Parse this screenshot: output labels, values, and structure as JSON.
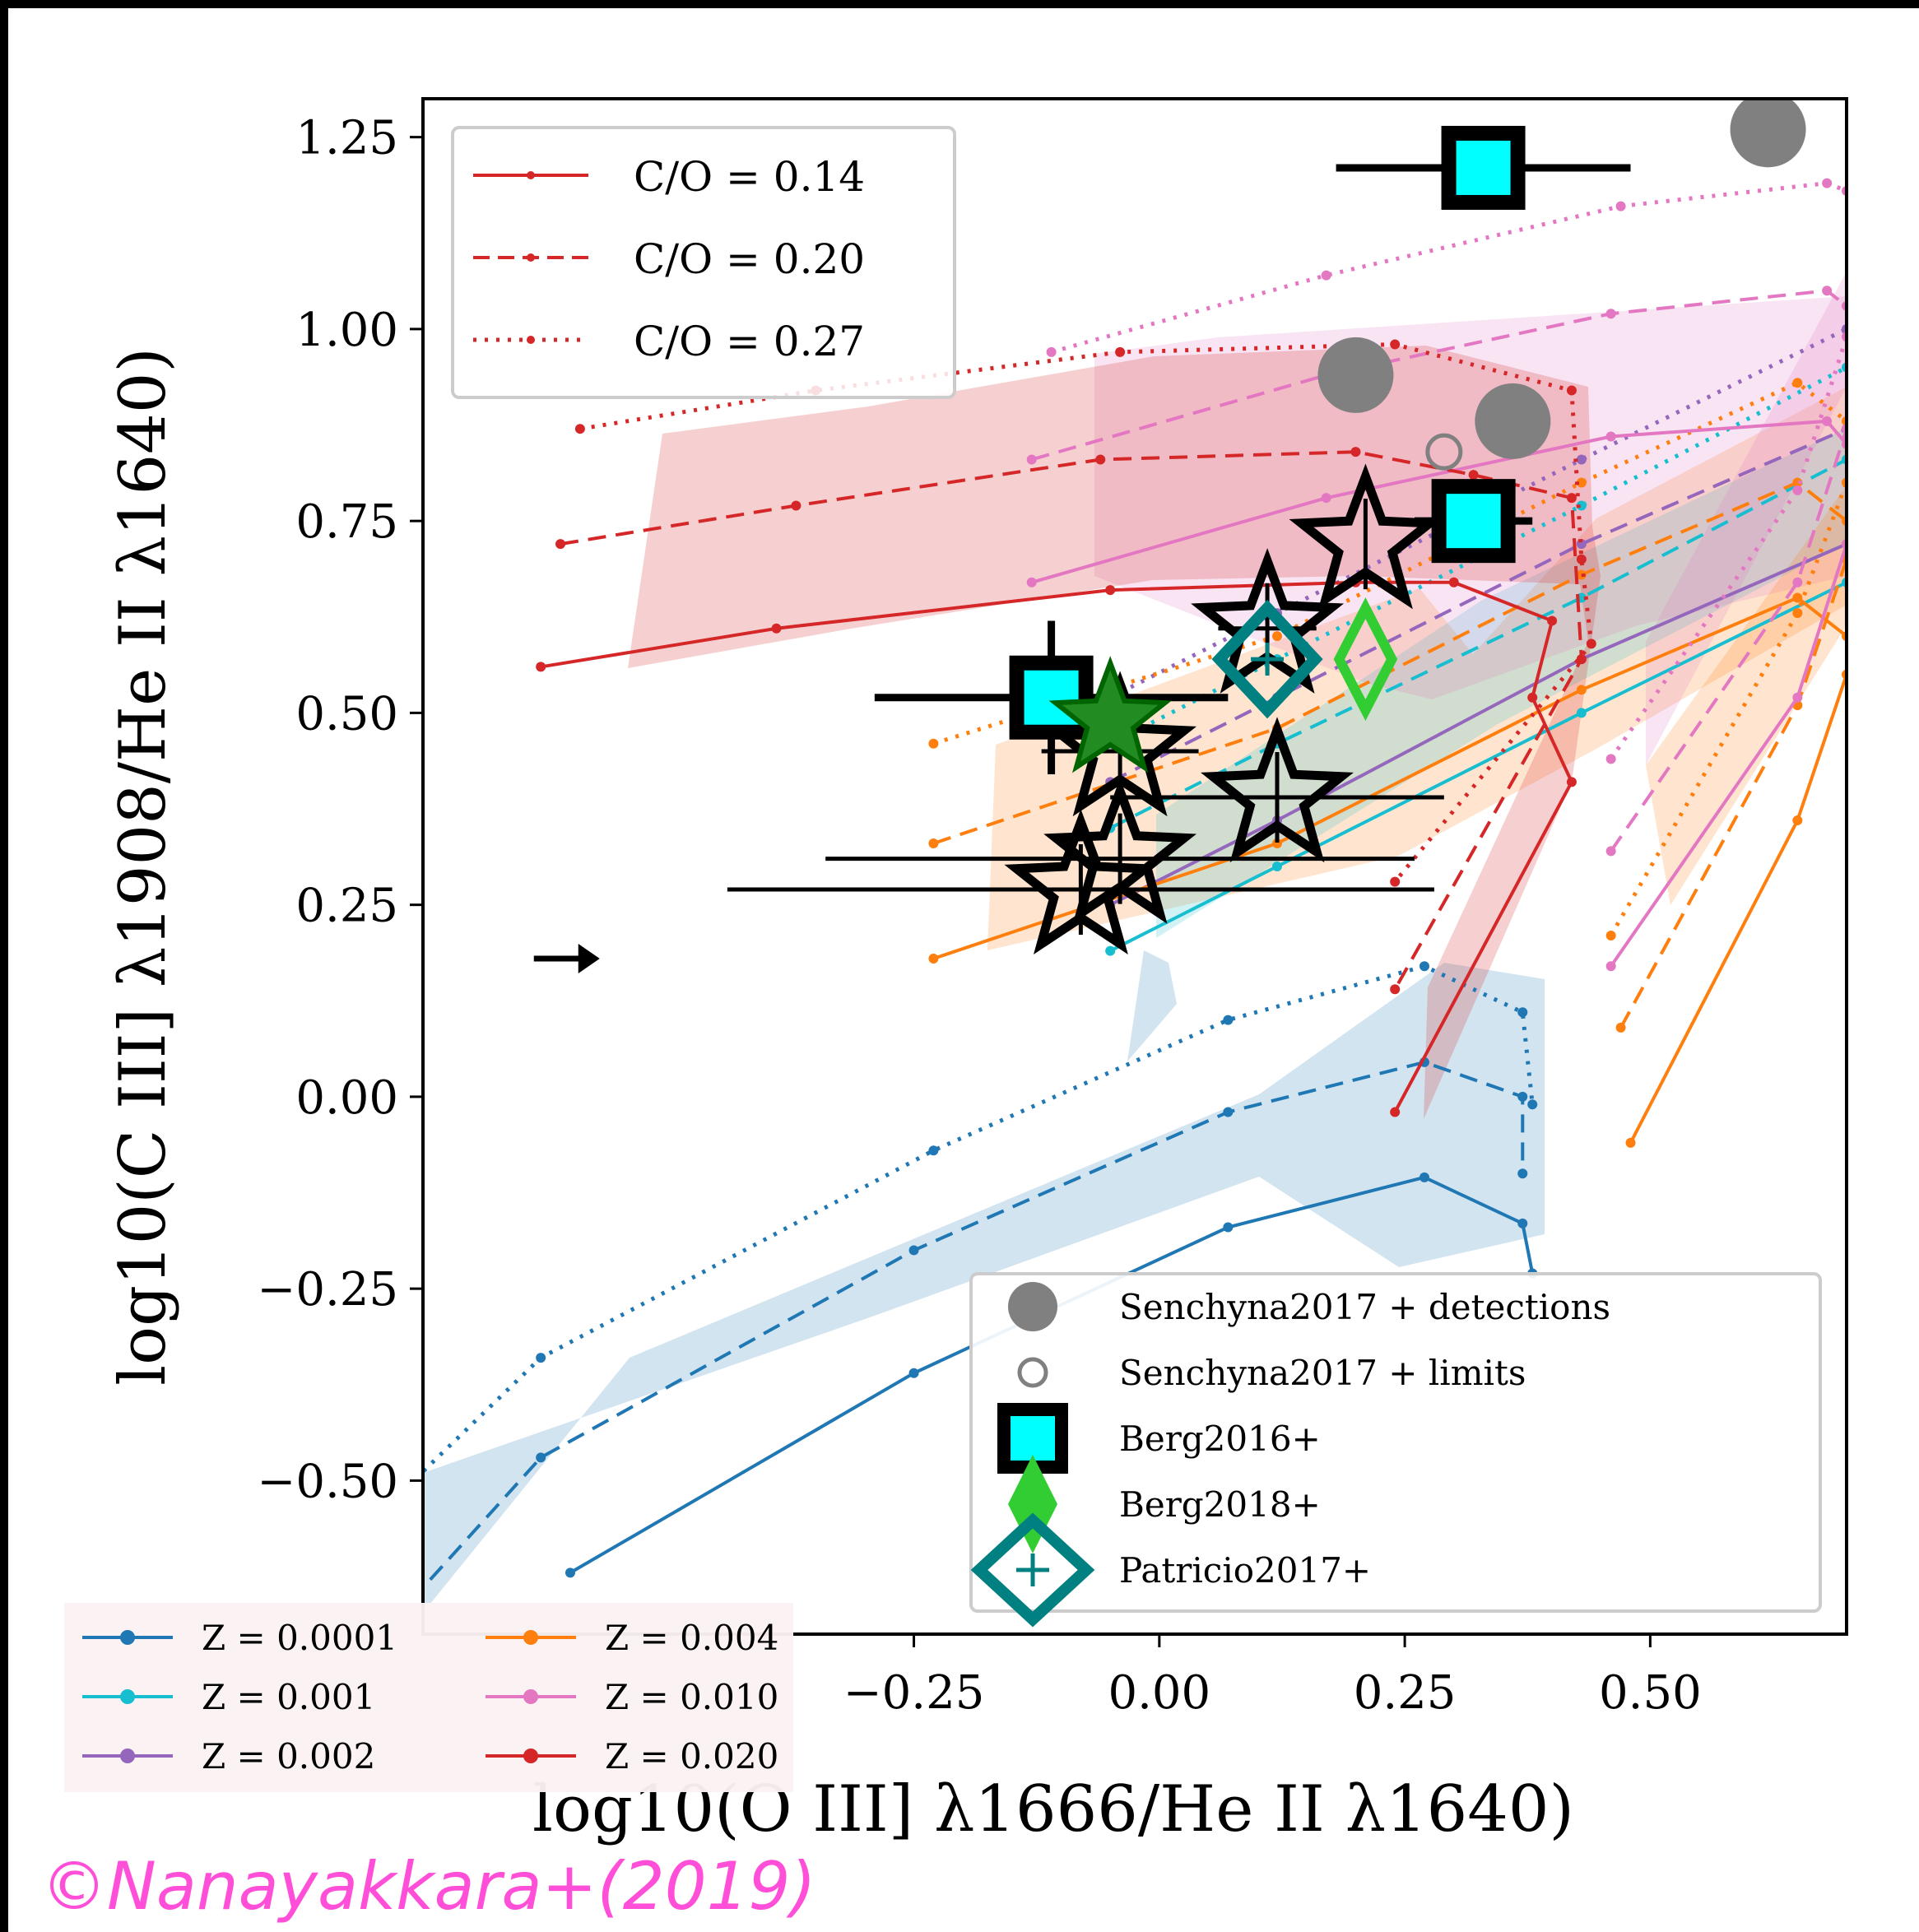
{
  "chart_data": {
    "type": "line",
    "xlabel": "log10(O III] λ1666/He II λ1640)",
    "ylabel": "log10(C III] λ1908/He II λ1640)",
    "xlim": [
      -0.75,
      0.7
    ],
    "ylim": [
      -0.7,
      1.3
    ],
    "xticks": [
      "−0.25",
      "0.00",
      "0.25",
      "0.50"
    ],
    "yticks": [
      "−0.50",
      "−0.25",
      "0.00",
      "0.25",
      "0.50",
      "0.75",
      "1.00",
      "1.25"
    ],
    "xtick_values": [
      -0.25,
      0,
      0.25,
      0.5
    ],
    "ytick_values": [
      -0.5,
      -0.25,
      0,
      0.25,
      0.5,
      0.75,
      1.0,
      1.25
    ],
    "legend_co": [
      {
        "label": "C/O = 0.14",
        "style": "solid"
      },
      {
        "label": "C/O = 0.20",
        "style": "dashed"
      },
      {
        "label": "C/O = 0.27",
        "style": "dotted"
      }
    ],
    "legend_z": [
      {
        "label": "Z = 0.0001",
        "color": "#1f77b4"
      },
      {
        "label": "Z = 0.001",
        "color": "#17becf"
      },
      {
        "label": "Z = 0.002",
        "color": "#9467bd"
      },
      {
        "label": "Z = 0.004",
        "color": "#ff7f0e"
      },
      {
        "label": "Z = 0.010",
        "color": "#e377c2"
      },
      {
        "label": "Z = 0.020",
        "color": "#d62728"
      }
    ],
    "legend_obs": [
      {
        "label": "Senchyna2017 +  detections"
      },
      {
        "label": "Senchyna2017 +  limits"
      },
      {
        "label": "Berg2016+"
      },
      {
        "label": "Berg2018+"
      },
      {
        "label": "Patricio2017+"
      }
    ],
    "series": [
      {
        "color": "#1f77b4",
        "style": "solid",
        "x": [
          -0.6,
          -0.25,
          0.07,
          0.27,
          0.37,
          0.38
        ],
        "y": [
          -0.62,
          -0.36,
          -0.17,
          -0.105,
          -0.165,
          -0.23
        ]
      },
      {
        "color": "#1f77b4",
        "style": "dashed",
        "x": [
          -0.8,
          -0.63,
          -0.25,
          0.07,
          0.27,
          0.37,
          0.37
        ],
        "y": [
          -0.71,
          -0.47,
          -0.2,
          -0.02,
          0.045,
          0.0,
          -0.1
        ]
      },
      {
        "color": "#1f77b4",
        "style": "dotted",
        "x": [
          -0.8,
          -0.63,
          -0.23,
          0.07,
          0.27,
          0.37,
          0.38
        ],
        "y": [
          -0.55,
          -0.34,
          -0.07,
          0.1,
          0.17,
          0.11,
          -0.01
        ]
      },
      {
        "color": "#17becf",
        "style": "solid",
        "x": [
          -0.05,
          0.12,
          0.43,
          0.7
        ],
        "y": [
          0.19,
          0.3,
          0.5,
          0.67
        ]
      },
      {
        "color": "#17becf",
        "style": "dashed",
        "x": [
          -0.05,
          0.12,
          0.43,
          0.7
        ],
        "y": [
          0.35,
          0.46,
          0.65,
          0.83
        ]
      },
      {
        "color": "#17becf",
        "style": "dotted",
        "x": [
          -0.05,
          0.12,
          0.43,
          0.7
        ],
        "y": [
          0.46,
          0.57,
          0.77,
          0.95
        ]
      },
      {
        "color": "#9467bd",
        "style": "solid",
        "x": [
          -0.05,
          0.12,
          0.43,
          0.7
        ],
        "y": [
          0.25,
          0.36,
          0.57,
          0.72
        ]
      },
      {
        "color": "#9467bd",
        "style": "dashed",
        "x": [
          -0.05,
          0.12,
          0.43,
          0.7
        ],
        "y": [
          0.41,
          0.52,
          0.72,
          0.87
        ]
      },
      {
        "color": "#9467bd",
        "style": "dotted",
        "x": [
          -0.05,
          0.12,
          0.43,
          0.7
        ],
        "y": [
          0.52,
          0.63,
          0.83,
          1.0
        ]
      },
      {
        "color": "#ff7f0e",
        "style": "solid",
        "x": [
          -0.23,
          0.12,
          0.43,
          0.65,
          0.7
        ],
        "y": [
          0.18,
          0.33,
          0.53,
          0.65,
          0.6
        ]
      },
      {
        "color": "#ff7f0e",
        "style": "dashed",
        "x": [
          -0.23,
          0.12,
          0.43,
          0.65,
          0.7
        ],
        "y": [
          0.33,
          0.48,
          0.68,
          0.8,
          0.75
        ]
      },
      {
        "color": "#ff7f0e",
        "style": "dotted",
        "x": [
          -0.23,
          0.12,
          0.43,
          0.65,
          0.7
        ],
        "y": [
          0.46,
          0.6,
          0.8,
          0.93,
          0.88
        ]
      },
      {
        "color": "#ff7f0e",
        "style": "solid",
        "x": [
          0.48,
          0.65,
          0.7
        ],
        "y": [
          -0.06,
          0.36,
          0.55
        ]
      },
      {
        "color": "#ff7f0e",
        "style": "dashed",
        "x": [
          0.47,
          0.65,
          0.7
        ],
        "y": [
          0.09,
          0.51,
          0.7
        ]
      },
      {
        "color": "#ff7f0e",
        "style": "dotted",
        "x": [
          0.46,
          0.65,
          0.7
        ],
        "y": [
          0.21,
          0.63,
          0.8
        ]
      },
      {
        "color": "#e377c2",
        "style": "solid",
        "x": [
          -0.13,
          0.17,
          0.46,
          0.68,
          0.7
        ],
        "y": [
          0.67,
          0.78,
          0.86,
          0.88,
          0.85
        ]
      },
      {
        "color": "#e377c2",
        "style": "dashed",
        "x": [
          -0.13,
          0.17,
          0.46,
          0.68,
          0.7
        ],
        "y": [
          0.83,
          0.94,
          1.02,
          1.05,
          1.03
        ]
      },
      {
        "color": "#e377c2",
        "style": "dotted",
        "x": [
          -0.11,
          0.17,
          0.47,
          0.68,
          0.7
        ],
        "y": [
          0.97,
          1.07,
          1.16,
          1.19,
          1.18
        ]
      },
      {
        "color": "#e377c2",
        "style": "solid",
        "x": [
          0.46,
          0.65,
          0.7
        ],
        "y": [
          0.17,
          0.52,
          0.72
        ]
      },
      {
        "color": "#e377c2",
        "style": "dashed",
        "x": [
          0.46,
          0.65,
          0.7
        ],
        "y": [
          0.32,
          0.67,
          0.87
        ]
      },
      {
        "color": "#e377c2",
        "style": "dotted",
        "x": [
          0.46,
          0.65,
          0.7
        ],
        "y": [
          0.44,
          0.79,
          0.99
        ]
      },
      {
        "color": "#d62728",
        "style": "solid",
        "x": [
          -0.63,
          -0.39,
          -0.05,
          0.2,
          0.3,
          0.4,
          0.38,
          0.42,
          0.24
        ],
        "y": [
          0.56,
          0.61,
          0.66,
          0.67,
          0.67,
          0.62,
          0.52,
          0.41,
          -0.02
        ]
      },
      {
        "color": "#d62728",
        "style": "dashed",
        "x": [
          -0.61,
          -0.37,
          -0.06,
          0.2,
          0.32,
          0.42,
          0.43,
          0.24
        ],
        "y": [
          0.72,
          0.77,
          0.83,
          0.84,
          0.81,
          0.78,
          0.57,
          0.14
        ]
      },
      {
        "color": "#d62728",
        "style": "dotted",
        "x": [
          -0.59,
          -0.35,
          -0.04,
          0.24,
          0.42,
          0.43,
          0.44,
          0.24
        ],
        "y": [
          0.87,
          0.92,
          0.97,
          0.98,
          0.92,
          0.7,
          0.59,
          0.28
        ]
      }
    ],
    "observations": {
      "senchyna_detections": [
        [
          0.2,
          0.94
        ],
        [
          0.36,
          0.88
        ],
        [
          0.62,
          1.26
        ]
      ],
      "senchyna_limits": [
        [
          0.29,
          0.84
        ]
      ],
      "berg2016": [
        {
          "x": 0.33,
          "y": 1.21,
          "xerr": 0.15
        },
        {
          "x": 0.32,
          "y": 0.75,
          "xerr": 0.06
        },
        {
          "x": -0.11,
          "y": 0.52,
          "xerr": 0.18,
          "yerr": 0.1
        }
      ],
      "berg2018": [
        [
          0.21,
          0.57
        ]
      ],
      "patricio2017": [
        [
          0.11,
          0.57
        ]
      ],
      "stars_open": [
        {
          "x": 0.21,
          "y": 0.72,
          "xerr": 0.0
        },
        {
          "x": 0.11,
          "y": 0.61,
          "xerr": 0.05
        },
        {
          "x": 0.12,
          "y": 0.39,
          "xerr": 0.17
        },
        {
          "x": -0.04,
          "y": 0.45,
          "xerr": 0.08
        },
        {
          "x": -0.04,
          "y": 0.31,
          "xerr": 0.3
        },
        {
          "x": -0.08,
          "y": 0.27,
          "xerr": 0.36
        }
      ],
      "stars_green": [
        [
          -0.05,
          0.49
        ]
      ],
      "arrow": {
        "x": -0.57,
        "y": 0.18
      }
    }
  },
  "watermark": "©Nanayakkara+(2019)"
}
